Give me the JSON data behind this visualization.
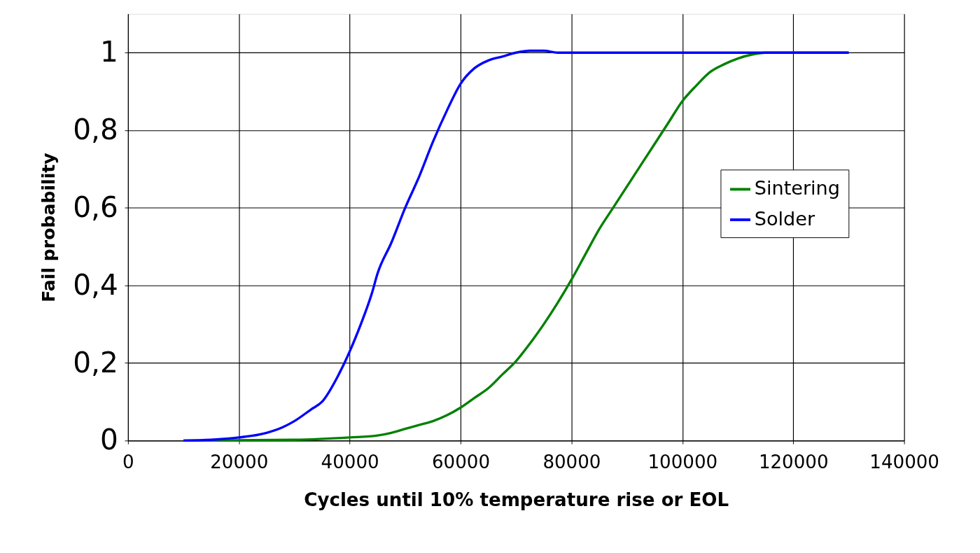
{
  "chart_data": {
    "type": "line",
    "xlabel": "Cycles until 10% temperature rise or EOL",
    "ylabel": "Fail probability",
    "xlim": [
      0,
      140000
    ],
    "xticks": [
      0,
      20000,
      40000,
      60000,
      80000,
      100000,
      120000,
      140000
    ],
    "ylim": [
      0,
      1.1
    ],
    "yticks": [
      0,
      {
        "value": 0.2,
        "label": "0,2"
      },
      {
        "value": 0.4,
        "label": "0,4"
      },
      {
        "value": 0.6,
        "label": "0,6"
      },
      {
        "value": 0.8,
        "label": "0,8"
      },
      1
    ],
    "grid": true,
    "legend": "top right",
    "line_style": "solid",
    "marker": "none",
    "series": [
      {
        "name": "Sintering",
        "color": "#008000",
        "x": [
          10000,
          30000,
          40000,
          45000,
          47500,
          50000,
          52500,
          55000,
          57500,
          60000,
          62500,
          65000,
          67500,
          70000,
          72500,
          75000,
          77500,
          80000,
          82500,
          85000,
          87500,
          90000,
          92500,
          95000,
          97500,
          100000,
          102500,
          105000,
          107500,
          110000,
          112500,
          115000,
          130000
        ],
        "values": [
          0,
          0.002,
          0.008,
          0.013,
          0.02,
          0.03,
          0.04,
          0.05,
          0.065,
          0.085,
          0.11,
          0.135,
          0.17,
          0.205,
          0.25,
          0.3,
          0.355,
          0.415,
          0.48,
          0.545,
          0.6,
          0.655,
          0.71,
          0.765,
          0.82,
          0.875,
          0.915,
          0.95,
          0.97,
          0.985,
          0.995,
          1,
          1
        ]
      },
      {
        "name": "Solder",
        "color": "#0000ff",
        "x": [
          10000,
          15000,
          20000,
          25000,
          28000,
          30000,
          33000,
          35000,
          38000,
          40000,
          42000,
          44000,
          45000,
          47500,
          50000,
          52500,
          55000,
          57500,
          60000,
          62500,
          65000,
          67500,
          70000,
          72500,
          75000,
          77500,
          130000
        ],
        "values": [
          0,
          0.002,
          0.008,
          0.02,
          0.035,
          0.05,
          0.08,
          0.1,
          0.17,
          0.23,
          0.3,
          0.38,
          0.43,
          0.51,
          0.6,
          0.68,
          0.77,
          0.85,
          0.92,
          0.96,
          0.98,
          0.99,
          1,
          1.005,
          1.005,
          1,
          1
        ]
      }
    ]
  }
}
